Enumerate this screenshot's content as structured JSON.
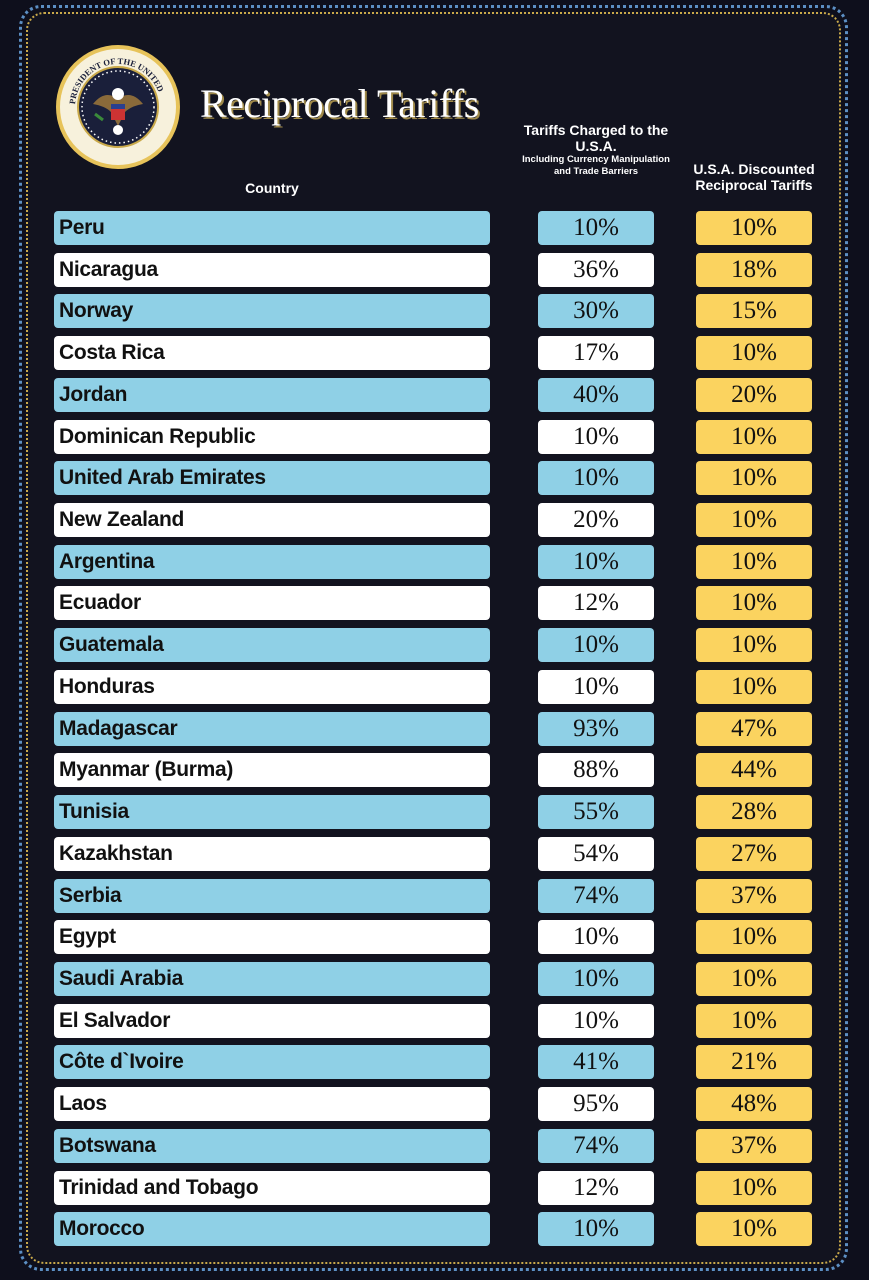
{
  "title": "Reciprocal Tariffs",
  "seal_text": "SEAL OF THE PRESIDENT OF THE UNITED STATES",
  "headers": {
    "country": "Country",
    "charged": "Tariffs Charged to the U.S.A.",
    "charged_sub": "Including Currency Manipulation and Trade Barriers",
    "reciprocal": "U.S.A. Discounted Reciprocal Tariffs"
  },
  "colors": {
    "background": "#12131f",
    "row_blue": "#8fd0e6",
    "row_white": "#ffffff",
    "reciprocal": "#fbd35f",
    "border_blue": "#5c8fc4",
    "border_gold": "#c9a94a"
  },
  "chart_data": {
    "type": "table",
    "title": "Reciprocal Tariffs",
    "columns": [
      "Country",
      "Tariffs Charged to the U.S.A. Including Currency Manipulation and Trade Barriers",
      "U.S.A. Discounted Reciprocal Tariffs"
    ],
    "rows": [
      {
        "country": "Peru",
        "charged": "10%",
        "reciprocal": "10%"
      },
      {
        "country": "Nicaragua",
        "charged": "36%",
        "reciprocal": "18%"
      },
      {
        "country": "Norway",
        "charged": "30%",
        "reciprocal": "15%"
      },
      {
        "country": "Costa Rica",
        "charged": "17%",
        "reciprocal": "10%"
      },
      {
        "country": "Jordan",
        "charged": "40%",
        "reciprocal": "20%"
      },
      {
        "country": "Dominican Republic",
        "charged": "10%",
        "reciprocal": "10%"
      },
      {
        "country": "United Arab Emirates",
        "charged": "10%",
        "reciprocal": "10%"
      },
      {
        "country": "New Zealand",
        "charged": "20%",
        "reciprocal": "10%"
      },
      {
        "country": "Argentina",
        "charged": "10%",
        "reciprocal": "10%"
      },
      {
        "country": "Ecuador",
        "charged": "12%",
        "reciprocal": "10%"
      },
      {
        "country": "Guatemala",
        "charged": "10%",
        "reciprocal": "10%"
      },
      {
        "country": "Honduras",
        "charged": "10%",
        "reciprocal": "10%"
      },
      {
        "country": "Madagascar",
        "charged": "93%",
        "reciprocal": "47%"
      },
      {
        "country": "Myanmar (Burma)",
        "charged": "88%",
        "reciprocal": "44%"
      },
      {
        "country": "Tunisia",
        "charged": "55%",
        "reciprocal": "28%"
      },
      {
        "country": "Kazakhstan",
        "charged": "54%",
        "reciprocal": "27%"
      },
      {
        "country": "Serbia",
        "charged": "74%",
        "reciprocal": "37%"
      },
      {
        "country": "Egypt",
        "charged": "10%",
        "reciprocal": "10%"
      },
      {
        "country": "Saudi Arabia",
        "charged": "10%",
        "reciprocal": "10%"
      },
      {
        "country": "El Salvador",
        "charged": "10%",
        "reciprocal": "10%"
      },
      {
        "country": "Côte d`Ivoire",
        "charged": "41%",
        "reciprocal": "21%"
      },
      {
        "country": "Laos",
        "charged": "95%",
        "reciprocal": "48%"
      },
      {
        "country": "Botswana",
        "charged": "74%",
        "reciprocal": "37%"
      },
      {
        "country": "Trinidad and Tobago",
        "charged": "12%",
        "reciprocal": "10%"
      },
      {
        "country": "Morocco",
        "charged": "10%",
        "reciprocal": "10%"
      }
    ]
  }
}
